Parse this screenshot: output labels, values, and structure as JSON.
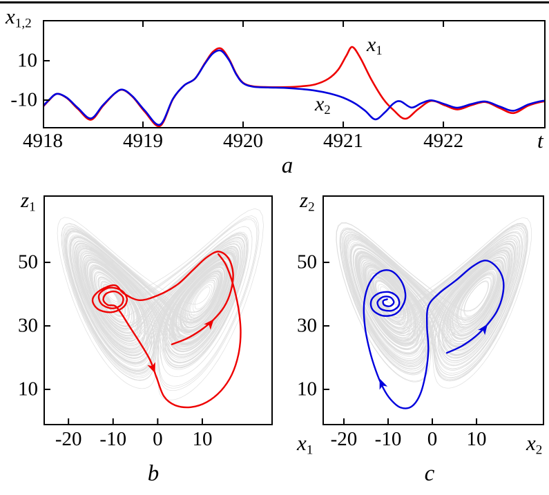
{
  "colors": {
    "x1": "#ee0000",
    "x2": "#0000dd",
    "attractor": "#999999",
    "axis": "#000000"
  },
  "captions": {
    "a": "a",
    "b": "b",
    "c": "c"
  },
  "chart_data": [
    {
      "id": "a",
      "type": "line",
      "xlabel": "t",
      "ylabel": {
        "base": "x",
        "sub": "1,2"
      },
      "xlim": [
        4918,
        4923.02
      ],
      "ylim": [
        -24.4,
        30.7
      ],
      "xticks": [
        4918,
        4919,
        4920,
        4921,
        4922
      ],
      "yticks": [
        10,
        -10
      ],
      "grid": false,
      "legend_position": "inline-annotations",
      "series": [
        {
          "name": "x1",
          "label": {
            "base": "x",
            "sub": "1"
          },
          "color": "#ee0000",
          "points": [
            [
              4918.0,
              -13.5
            ],
            [
              4918.06,
              -10.2
            ],
            [
              4918.14,
              -6.8
            ],
            [
              4918.24,
              -9.0
            ],
            [
              4918.35,
              -14.5
            ],
            [
              4918.48,
              -20.0
            ],
            [
              4918.6,
              -13.0
            ],
            [
              4918.72,
              -6.6
            ],
            [
              4918.8,
              -4.8
            ],
            [
              4918.9,
              -8.5
            ],
            [
              4919.02,
              -16.0
            ],
            [
              4919.17,
              -23.2
            ],
            [
              4919.3,
              -9.5
            ],
            [
              4919.41,
              -2.6
            ],
            [
              4919.52,
              0.9
            ],
            [
              4919.62,
              8.9
            ],
            [
              4919.7,
              14.6
            ],
            [
              4919.78,
              16.2
            ],
            [
              4919.86,
              10.8
            ],
            [
              4919.93,
              3.5
            ],
            [
              4920.0,
              -1.2
            ],
            [
              4920.1,
              -3.0
            ],
            [
              4920.25,
              -3.4
            ],
            [
              4920.42,
              -3.4
            ],
            [
              4920.58,
              -3.0
            ],
            [
              4920.72,
              -2.0
            ],
            [
              4920.85,
              0.8
            ],
            [
              4920.95,
              5.5
            ],
            [
              4921.03,
              12.5
            ],
            [
              4921.09,
              17.0
            ],
            [
              4921.17,
              11.5
            ],
            [
              4921.28,
              0.5
            ],
            [
              4921.4,
              -9.5
            ],
            [
              4921.5,
              -15.0
            ],
            [
              4921.62,
              -19.5
            ],
            [
              4921.75,
              -14.5
            ],
            [
              4921.88,
              -10.4
            ],
            [
              4922.02,
              -12.8
            ],
            [
              4922.14,
              -14.8
            ],
            [
              4922.28,
              -12.6
            ],
            [
              4922.42,
              -11.0
            ],
            [
              4922.56,
              -14.0
            ],
            [
              4922.7,
              -16.6
            ],
            [
              4922.85,
              -12.8
            ],
            [
              4922.99,
              -10.8
            ],
            [
              4923.05,
              -11.0
            ]
          ]
        },
        {
          "name": "x2",
          "label": {
            "base": "x",
            "sub": "2"
          },
          "color": "#0000dd",
          "points": [
            [
              4918.0,
              -13.2
            ],
            [
              4918.06,
              -10.0
            ],
            [
              4918.14,
              -6.8
            ],
            [
              4918.24,
              -8.8
            ],
            [
              4918.35,
              -14.0
            ],
            [
              4918.48,
              -19.3
            ],
            [
              4918.6,
              -12.6
            ],
            [
              4918.72,
              -6.5
            ],
            [
              4918.8,
              -4.7
            ],
            [
              4918.9,
              -8.3
            ],
            [
              4919.02,
              -15.4
            ],
            [
              4919.17,
              -22.5
            ],
            [
              4919.3,
              -9.3
            ],
            [
              4919.41,
              -2.6
            ],
            [
              4919.52,
              0.9
            ],
            [
              4919.62,
              8.6
            ],
            [
              4919.7,
              13.8
            ],
            [
              4919.78,
              15.1
            ],
            [
              4919.86,
              10.3
            ],
            [
              4919.93,
              3.2
            ],
            [
              4920.0,
              -1.4
            ],
            [
              4920.1,
              -3.2
            ],
            [
              4920.25,
              -3.6
            ],
            [
              4920.42,
              -3.8
            ],
            [
              4920.58,
              -4.4
            ],
            [
              4920.72,
              -5.2
            ],
            [
              4920.86,
              -6.6
            ],
            [
              4921.0,
              -8.8
            ],
            [
              4921.12,
              -11.8
            ],
            [
              4921.22,
              -15.5
            ],
            [
              4921.32,
              -19.8
            ],
            [
              4921.42,
              -16.0
            ],
            [
              4921.5,
              -11.8
            ],
            [
              4921.57,
              -10.6
            ],
            [
              4921.68,
              -13.8
            ],
            [
              4921.78,
              -11.6
            ],
            [
              4921.88,
              -10.1
            ],
            [
              4922.02,
              -12.2
            ],
            [
              4922.14,
              -13.9
            ],
            [
              4922.28,
              -12.0
            ],
            [
              4922.42,
              -10.7
            ],
            [
              4922.56,
              -13.2
            ],
            [
              4922.7,
              -15.4
            ],
            [
              4922.85,
              -12.2
            ],
            [
              4922.99,
              -10.4
            ],
            [
              4923.05,
              -10.6
            ]
          ]
        }
      ]
    },
    {
      "id": "b",
      "type": "phase_portrait",
      "xlabel": {
        "base": "x",
        "sub": "1"
      },
      "ylabel": {
        "base": "z",
        "sub": "1"
      },
      "xlim": [
        -25.6,
        25.8
      ],
      "ylim": [
        -1.3,
        71.1
      ],
      "xticks": [
        -20,
        -10,
        0,
        10
      ],
      "yticks": [
        10,
        30,
        50
      ],
      "grid": false,
      "attractor": {
        "system": "lorenz",
        "sigma": 10,
        "rho": 40,
        "beta": 2.66667,
        "dt": 0.0045,
        "steps": 30000,
        "skip": 1500,
        "record_every": 2,
        "initial": [
          3.1,
          5.2,
          22.0
        ],
        "color": "#999999",
        "opacity": 0.32
      },
      "trajectory": {
        "color": "#ee0000",
        "points": [
          [
            3.2,
            24.2
          ],
          [
            6.5,
            26.0
          ],
          [
            9.6,
            28.6
          ],
          [
            12.4,
            31.8
          ],
          [
            14.9,
            36.0
          ],
          [
            16.4,
            41.0
          ],
          [
            16.9,
            46.5
          ],
          [
            15.9,
            51.2
          ],
          [
            13.7,
            53.4
          ],
          [
            11.0,
            51.6
          ],
          [
            7.9,
            47.6
          ],
          [
            4.4,
            43.0
          ],
          [
            0.0,
            39.6
          ],
          [
            -4.1,
            38.1
          ],
          [
            -7.6,
            40.2
          ],
          [
            -9.6,
            42.8
          ],
          [
            -12.9,
            41.2
          ],
          [
            -14.6,
            38.3
          ],
          [
            -13.4,
            35.3
          ],
          [
            -10.4,
            34.3
          ],
          [
            -7.7,
            35.9
          ],
          [
            -6.9,
            38.6
          ],
          [
            -8.2,
            41.2
          ],
          [
            -10.9,
            42.0
          ],
          [
            -13.1,
            39.9
          ],
          [
            -12.6,
            36.9
          ],
          [
            -10.2,
            35.5
          ],
          [
            -8.2,
            36.6
          ],
          [
            -7.8,
            39.0
          ],
          [
            -9.4,
            40.8
          ],
          [
            -11.5,
            40.2
          ],
          [
            -12.2,
            38.2
          ],
          [
            -11.2,
            36.6
          ],
          [
            -9.6,
            36.3
          ],
          [
            -8.3,
            34.2
          ],
          [
            -6.4,
            30.0
          ],
          [
            -3.9,
            24.5
          ],
          [
            -1.7,
            19.2
          ],
          [
            -0.2,
            13.5
          ],
          [
            1.4,
            7.8
          ],
          [
            3.9,
            5.0
          ],
          [
            7.4,
            4.4
          ],
          [
            11.0,
            6.0
          ],
          [
            14.2,
            9.6
          ],
          [
            16.6,
            14.6
          ],
          [
            18.1,
            21.0
          ],
          [
            18.6,
            28.0
          ],
          [
            18.1,
            35.5
          ],
          [
            16.9,
            43.0
          ],
          [
            15.3,
            49.2
          ],
          [
            13.6,
            52.6
          ]
        ],
        "arrows": [
          {
            "at": [
              12.4,
              31.8
            ],
            "dir": [
              2.5,
              4.2
            ]
          },
          {
            "at": [
              -0.7,
              15.5
            ],
            "dir": [
              1.5,
              -5.5
            ]
          }
        ]
      }
    },
    {
      "id": "c",
      "type": "phase_portrait",
      "xlabel": {
        "base": "x",
        "sub": "2"
      },
      "ylabel": {
        "base": "z",
        "sub": "2"
      },
      "xlim": [
        -24.84,
        25.3
      ],
      "ylim": [
        -1.3,
        71.1
      ],
      "xticks": [
        -20,
        -10,
        0,
        10
      ],
      "yticks": [
        10,
        30,
        50
      ],
      "grid": false,
      "attractor": {
        "system": "lorenz",
        "sigma": 10,
        "rho": 40,
        "beta": 2.66667,
        "dt": 0.0045,
        "steps": 30000,
        "skip": 1500,
        "record_every": 2,
        "initial": [
          -4.2,
          -6.0,
          30.0
        ],
        "color": "#999999",
        "opacity": 0.32
      },
      "trajectory": {
        "color": "#0000dd",
        "points": [
          [
            3.3,
            21.5
          ],
          [
            6.6,
            23.6
          ],
          [
            9.7,
            26.6
          ],
          [
            12.3,
            30.2
          ],
          [
            14.6,
            34.6
          ],
          [
            15.9,
            39.6
          ],
          [
            16.0,
            44.6
          ],
          [
            14.5,
            48.6
          ],
          [
            12.0,
            50.6
          ],
          [
            9.0,
            48.6
          ],
          [
            5.4,
            44.4
          ],
          [
            1.5,
            40.2
          ],
          [
            -0.9,
            36.2
          ],
          [
            -1.2,
            30.0
          ],
          [
            -0.9,
            23.0
          ],
          [
            -1.4,
            15.8
          ],
          [
            -2.7,
            8.6
          ],
          [
            -4.7,
            4.6
          ],
          [
            -7.2,
            4.3
          ],
          [
            -9.4,
            6.8
          ],
          [
            -11.1,
            10.4
          ],
          [
            -12.8,
            16.0
          ],
          [
            -14.3,
            23.0
          ],
          [
            -15.3,
            30.5
          ],
          [
            -15.4,
            37.5
          ],
          [
            -14.2,
            43.5
          ],
          [
            -11.9,
            47.0
          ],
          [
            -9.3,
            47.3
          ],
          [
            -7.1,
            44.3
          ],
          [
            -6.1,
            40.2
          ],
          [
            -6.5,
            36.9
          ],
          [
            -8.3,
            33.8
          ],
          [
            -11.2,
            33.2
          ],
          [
            -13.5,
            35.1
          ],
          [
            -13.8,
            38.0
          ],
          [
            -12.2,
            40.2
          ],
          [
            -9.6,
            40.6
          ],
          [
            -7.8,
            38.9
          ],
          [
            -7.6,
            36.4
          ],
          [
            -9.2,
            34.8
          ],
          [
            -11.6,
            35.3
          ],
          [
            -12.4,
            37.4
          ],
          [
            -11.2,
            39.1
          ],
          [
            -9.5,
            39.0
          ],
          [
            -8.7,
            37.4
          ],
          [
            -9.6,
            36.2
          ],
          [
            -10.9,
            36.6
          ],
          [
            -11.1,
            37.9
          ],
          [
            -10.2,
            38.4
          ]
        ],
        "arrows": [
          {
            "at": [
              12.3,
              30.2
            ],
            "dir": [
              2.3,
              4.4
            ]
          },
          {
            "at": [
              -11.8,
              13.0
            ],
            "dir": [
              -1.6,
              5.5
            ]
          }
        ]
      }
    }
  ]
}
